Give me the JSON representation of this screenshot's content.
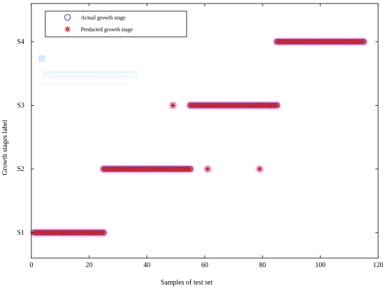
{
  "chart_data": {
    "type": "scatter",
    "title": "",
    "xlabel": "Samples of test set",
    "ylabel": "Growth stages label",
    "xlim": [
      0,
      120
    ],
    "ylim": [
      0.6,
      4.6
    ],
    "xticks": [
      0,
      20,
      40,
      60,
      80,
      100,
      120
    ],
    "yticks": [
      {
        "value": 1,
        "label": "S1"
      },
      {
        "value": 2,
        "label": "S2"
      },
      {
        "value": 3,
        "label": "S3"
      },
      {
        "value": 4,
        "label": "S4"
      }
    ],
    "grid": false,
    "legend_position": "top-left",
    "series": [
      {
        "name": "Actual growth stage",
        "marker": "open-circle",
        "color": "#3a3ac8",
        "points": [
          {
            "x_range": [
              1,
              25
            ],
            "y": 1
          },
          {
            "x_range": [
              25,
              55
            ],
            "y": 2
          },
          {
            "x_range": [
              55,
              85
            ],
            "y": 3
          },
          {
            "x_range": [
              85,
              115
            ],
            "y": 4
          }
        ]
      },
      {
        "name": "Predacted growth stage",
        "marker": "star",
        "color": "#d01818",
        "points": [
          {
            "x_range": [
              1,
              25
            ],
            "y": 1
          },
          {
            "x_range": [
              25,
              55
            ],
            "y": 2
          },
          {
            "x": 49,
            "y": 3
          },
          {
            "x_range": [
              55,
              85
            ],
            "y": 3
          },
          {
            "x": 61,
            "y": 2
          },
          {
            "x": 79,
            "y": 2
          },
          {
            "x_range": [
              85,
              115
            ],
            "y": 4
          }
        ]
      }
    ]
  },
  "colors": {
    "actual": "#3a3ac8",
    "predicted": "#d01818",
    "highlight": "#f0a0ec"
  }
}
